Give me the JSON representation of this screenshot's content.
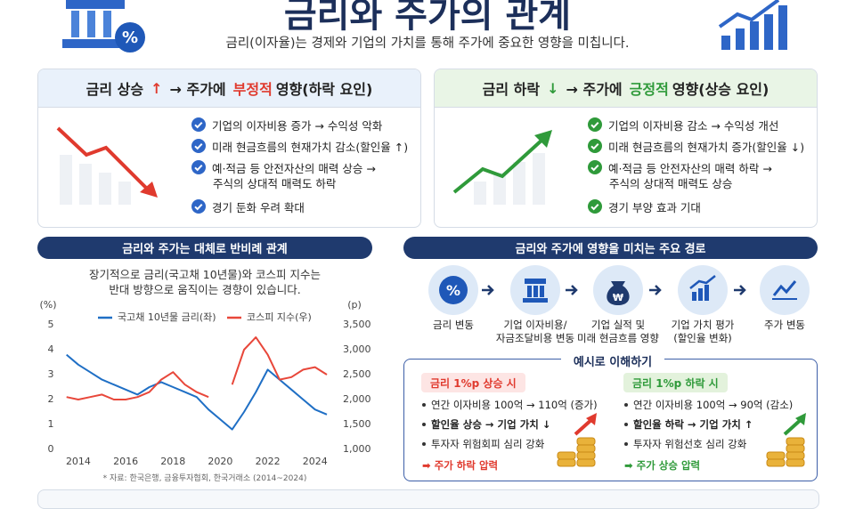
{
  "header": {
    "title": "금리와 주가의 관계",
    "subtitle": "금리(이자율)는 경제와 기업의 가치를 통해 주가에 중요한 영향을 미칩니다."
  },
  "rise_card": {
    "title_parts": [
      "금리 상승",
      "↑",
      "→ 주가에",
      "부정적",
      "영향(하락 요인)"
    ],
    "bullets": [
      [
        "기업의 이자비용 증가 → 수익성 악화"
      ],
      [
        "미래 현금흐름의 현재가치 감소(할인율 ↑)"
      ],
      [
        "예·적금 등 안전자산의 매력 상승 →",
        "주식의 상대적 매력도 하락"
      ],
      [
        "경기 둔화 우려 확대"
      ]
    ]
  },
  "fall_card": {
    "title_parts": [
      "금리 하락",
      "↓",
      "→ 주가에",
      "긍정적",
      "영향(상승 요인)"
    ],
    "bullets": [
      [
        "기업의 이자비용 감소 → 수익성 개선"
      ],
      [
        "미래 현금흐름의 현재가치 증가(할인율 ↓)"
      ],
      [
        "예·적금 등 안전자산의 매력 하락 →",
        "주식의 상대적 매력도 상승"
      ],
      [
        "경기 부양 효과 기대"
      ]
    ]
  },
  "chart_panel": {
    "heading": "금리와 주가는 대체로 반비례 관계",
    "description": [
      "장기적으로 금리(국고채 10년물)와 코스피 지수는",
      "반대 방향으로 움직이는 경향이 있습니다."
    ],
    "source": "* 자료: 한국은행, 금융투자협회, 한국거래소 (2014~2024)"
  },
  "chart_data": {
    "type": "line",
    "x": [
      2013.5,
      2014,
      2014.5,
      2015,
      2015.5,
      2016,
      2016.5,
      2017,
      2017.5,
      2018,
      2018.5,
      2019,
      2019.5,
      2020,
      2020.5,
      2021,
      2021.5,
      2022,
      2022.5,
      2023,
      2023.5,
      2024,
      2024.5
    ],
    "series": [
      {
        "name": "국고채 10년물 금리(좌)",
        "color": "#1f6fc5",
        "axis": "y",
        "values": [
          3.8,
          3.4,
          3.1,
          2.8,
          2.6,
          2.4,
          2.2,
          2.5,
          2.7,
          2.5,
          2.3,
          2.1,
          1.6,
          1.2,
          0.8,
          1.5,
          2.3,
          3.2,
          2.8,
          2.4,
          2.0,
          1.6,
          1.4
        ]
      },
      {
        "name": "코스피 지수(우)",
        "color": "#e8473a",
        "axis": "y2",
        "values": [
          2050,
          2000,
          2050,
          2100,
          2000,
          2000,
          2050,
          2150,
          2400,
          2550,
          2300,
          2150,
          2050,
          null,
          2300,
          3000,
          3250,
          2900,
          2400,
          2450,
          2600,
          2650,
          2500
        ]
      }
    ],
    "xlim": [
      2013.4,
      2024.8
    ],
    "xticks": [
      2014,
      2016,
      2018,
      2020,
      2022,
      2024
    ],
    "ylim": [
      0,
      5
    ],
    "yticks": [
      0,
      1,
      2,
      3,
      4,
      5
    ],
    "y2lim": [
      1000,
      3500
    ],
    "y2ticks": [
      {
        "value": 1000,
        "label": "1,000"
      },
      {
        "value": 1500,
        "label": "1,500"
      },
      {
        "value": 2000,
        "label": "2,000"
      },
      {
        "value": 2500,
        "label": "2,500"
      },
      {
        "value": 3000,
        "label": "3,000"
      },
      {
        "value": 3500,
        "label": "3,500"
      }
    ],
    "y_label": "(%)",
    "y2_label": "(p)",
    "legend": "top",
    "grid": false
  },
  "process": {
    "heading": "금리와 주가에 영향을 미치는 주요 경로",
    "steps": [
      [
        "금리 변동"
      ],
      [
        "기업 이자비용/",
        "자금조달비용 변동"
      ],
      [
        "기업 실적 및",
        "미래 현금흐름 영향"
      ],
      [
        "기업 가치 평가",
        "(할인율 변화)"
      ],
      [
        "주가 변동"
      ]
    ]
  },
  "example": {
    "heading": "예시로 이해하기",
    "rise": {
      "title": "금리 1%p 상승 시",
      "items": [
        "연간 이자비용 100억 → 110억 (증가)",
        "할인율 상승 → 기업 가치 ↓",
        "투자자 위험회피 심리 강화"
      ],
      "result": "➡ 주가 하락 압력"
    },
    "fall": {
      "title": "금리 1%p 하락 시",
      "items": [
        "연간 이자비용 100억 → 90억 (감소)",
        "할인율 하락 → 기업 가치 ↑",
        "투자자 위험선호 심리 강화"
      ],
      "result": "➡ 주가 상승 압력"
    }
  }
}
